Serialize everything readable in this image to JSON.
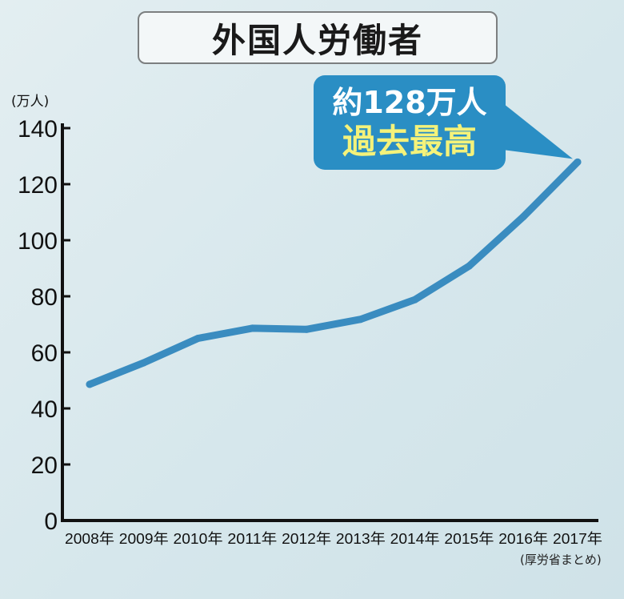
{
  "title": "外国人労働者",
  "callout": {
    "line1": "約128万人",
    "line2": "過去最高"
  },
  "source": "(厚労省まとめ)",
  "colors": {
    "line": "#3a8cc0",
    "callout_bg": "#2a8ec4",
    "callout_highlight": "#f4f27a",
    "axis": "#111111"
  },
  "chart_data": {
    "type": "line",
    "title": "外国人労働者",
    "ylabel": "(万人)",
    "xlabel": "",
    "categories": [
      "2008年",
      "2009年",
      "2010年",
      "2011年",
      "2012年",
      "2013年",
      "2014年",
      "2015年",
      "2016年",
      "2017年"
    ],
    "series": [
      {
        "values": [
          48.6,
          56.3,
          65.0,
          68.6,
          68.2,
          71.8,
          78.8,
          90.8,
          108.4,
          127.9
        ]
      }
    ],
    "ylim": [
      0,
      140
    ],
    "yticks": [
      0,
      20,
      40,
      60,
      80,
      100,
      120,
      140
    ],
    "grid": false,
    "legend": "none"
  }
}
